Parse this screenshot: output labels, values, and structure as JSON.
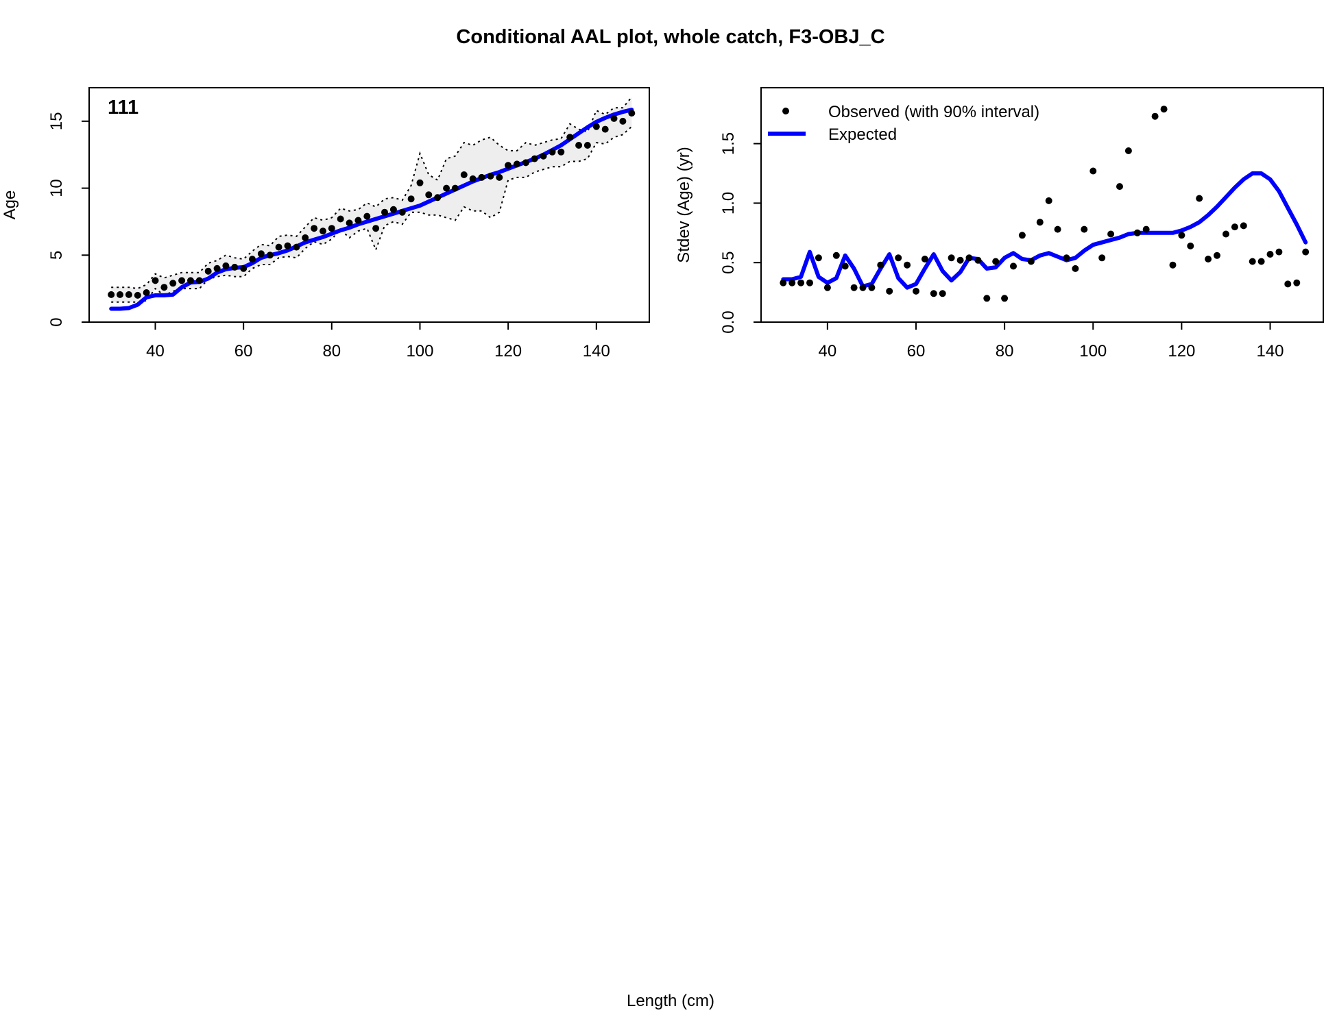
{
  "title": "Conditional AAL plot, whole catch, F3-OBJ_C",
  "xlabel": "Length (cm)",
  "colors": {
    "expected": "#0000ff",
    "observed": "#000000",
    "band": "#eeeeee"
  },
  "chart_data": [
    {
      "type": "scatter",
      "panel_label": "111",
      "ylabel": "Age",
      "xlim": [
        25,
        152
      ],
      "ylim": [
        0,
        17.5
      ],
      "xticks": [
        40,
        60,
        80,
        100,
        120,
        140
      ],
      "yticks": [
        0,
        5,
        10,
        15
      ],
      "grid": false,
      "legend": false,
      "series": [
        {
          "role": "observed",
          "x": [
            30,
            32,
            34,
            36,
            38,
            40,
            42,
            44,
            46,
            48,
            50,
            52,
            54,
            56,
            58,
            60,
            62,
            64,
            66,
            68,
            70,
            72,
            74,
            76,
            78,
            80,
            82,
            84,
            86,
            88,
            90,
            92,
            94,
            96,
            98,
            100,
            102,
            104,
            106,
            108,
            110,
            112,
            114,
            116,
            118,
            120,
            122,
            124,
            126,
            128,
            130,
            132,
            134,
            136,
            138,
            140,
            142,
            144,
            146,
            148
          ],
          "values": [
            2.05,
            2.05,
            2.05,
            2.0,
            2.2,
            3.1,
            2.6,
            2.9,
            3.1,
            3.1,
            3.1,
            3.8,
            4.0,
            4.2,
            4.1,
            4.0,
            4.7,
            5.1,
            5.0,
            5.6,
            5.7,
            5.6,
            6.3,
            7.0,
            6.8,
            7.0,
            7.7,
            7.4,
            7.6,
            7.9,
            7.0,
            8.2,
            8.4,
            8.2,
            9.2,
            10.4,
            9.5,
            9.3,
            10.0,
            10.0,
            11.0,
            10.7,
            10.8,
            10.9,
            10.8,
            11.7,
            11.8,
            11.9,
            12.2,
            12.4,
            12.7,
            12.7,
            13.8,
            13.2,
            13.2,
            14.6,
            14.4,
            15.2,
            15.0,
            15.6
          ],
          "lower": [
            1.5,
            1.5,
            1.5,
            1.5,
            1.6,
            2.5,
            2.0,
            2.3,
            2.5,
            2.5,
            2.5,
            3.2,
            3.4,
            3.5,
            3.4,
            3.4,
            4.0,
            4.3,
            4.3,
            4.8,
            4.9,
            4.8,
            5.5,
            6.0,
            5.8,
            6.2,
            6.9,
            6.3,
            6.8,
            7.0,
            5.4,
            7.2,
            7.5,
            7.3,
            8.2,
            8.2,
            8.0,
            8.0,
            7.8,
            7.6,
            8.6,
            8.3,
            8.3,
            7.8,
            8.2,
            10.6,
            10.8,
            10.8,
            11.2,
            11.4,
            11.6,
            11.6,
            12.0,
            12.0,
            12.2,
            13.4,
            13.3,
            13.8,
            14.0,
            14.6
          ],
          "upper": [
            2.6,
            2.6,
            2.6,
            2.5,
            2.8,
            3.6,
            3.3,
            3.5,
            3.7,
            3.7,
            3.7,
            4.4,
            4.6,
            5.0,
            4.8,
            4.7,
            5.3,
            5.8,
            5.7,
            6.4,
            6.5,
            6.4,
            7.1,
            7.8,
            7.6,
            7.8,
            8.5,
            8.3,
            8.4,
            8.9,
            8.6,
            9.2,
            9.3,
            9.1,
            10.2,
            12.6,
            11.0,
            10.6,
            12.2,
            12.4,
            13.4,
            13.2,
            13.6,
            13.8,
            13.2,
            12.8,
            12.8,
            13.4,
            13.2,
            13.4,
            13.6,
            13.7,
            14.8,
            14.4,
            14.2,
            15.8,
            15.5,
            16.0,
            16.0,
            16.8
          ]
        },
        {
          "role": "expected",
          "x": [
            30,
            32,
            34,
            36,
            38,
            40,
            42,
            44,
            46,
            48,
            50,
            52,
            54,
            56,
            58,
            60,
            62,
            64,
            66,
            68,
            70,
            72,
            74,
            76,
            78,
            80,
            82,
            84,
            86,
            88,
            90,
            92,
            94,
            96,
            98,
            100,
            102,
            104,
            106,
            108,
            110,
            112,
            114,
            116,
            118,
            120,
            122,
            124,
            126,
            128,
            130,
            132,
            134,
            136,
            138,
            140,
            142,
            144,
            146,
            148
          ],
          "values": [
            1.0,
            1.0,
            1.05,
            1.3,
            1.85,
            2.0,
            2.0,
            2.05,
            2.6,
            2.95,
            3.0,
            3.25,
            3.7,
            3.95,
            4.05,
            4.1,
            4.4,
            4.8,
            5.0,
            5.15,
            5.35,
            5.65,
            5.95,
            6.15,
            6.35,
            6.6,
            6.85,
            7.05,
            7.3,
            7.5,
            7.7,
            7.9,
            8.1,
            8.3,
            8.5,
            8.7,
            9.0,
            9.3,
            9.6,
            9.9,
            10.2,
            10.5,
            10.75,
            11.0,
            11.2,
            11.45,
            11.7,
            11.95,
            12.2,
            12.5,
            12.85,
            13.2,
            13.65,
            14.1,
            14.55,
            14.95,
            15.25,
            15.5,
            15.7,
            15.85
          ]
        }
      ]
    },
    {
      "type": "scatter",
      "ylabel": "Stdev (Age) (yr)",
      "xlim": [
        25,
        152
      ],
      "ylim": [
        0,
        1.97
      ],
      "xticks": [
        40,
        60,
        80,
        100,
        120,
        140
      ],
      "yticks": [
        "0.0",
        "0.5",
        "1.0",
        "1.5"
      ],
      "grid": false,
      "legend_position": "top-left",
      "series": [
        {
          "name": "Observed (with 90% interval)",
          "role": "observed",
          "x": [
            30,
            32,
            34,
            36,
            38,
            40,
            42,
            44,
            46,
            48,
            50,
            52,
            54,
            56,
            58,
            60,
            62,
            64,
            66,
            68,
            70,
            72,
            74,
            76,
            78,
            80,
            82,
            84,
            86,
            88,
            90,
            92,
            94,
            96,
            98,
            100,
            102,
            104,
            106,
            108,
            110,
            112,
            114,
            116,
            118,
            120,
            122,
            124,
            126,
            128,
            130,
            132,
            134,
            136,
            138,
            140,
            142,
            144,
            146,
            148
          ],
          "values": [
            0.33,
            0.33,
            0.33,
            0.33,
            0.54,
            0.29,
            0.56,
            0.47,
            0.29,
            0.29,
            0.29,
            0.48,
            0.26,
            0.54,
            0.48,
            0.26,
            0.53,
            0.24,
            0.24,
            0.54,
            0.52,
            0.54,
            0.52,
            0.2,
            0.51,
            0.2,
            0.47,
            0.73,
            0.51,
            0.84,
            1.02,
            0.78,
            0.54,
            0.45,
            0.78,
            1.27,
            0.54,
            0.74,
            1.14,
            1.44,
            0.75,
            0.78,
            1.73,
            1.79,
            0.48,
            0.73,
            0.64,
            1.04,
            0.53,
            0.56,
            0.74,
            0.8,
            0.81,
            0.51,
            0.51,
            0.57,
            0.59,
            0.32,
            0.33,
            0.59
          ]
        },
        {
          "name": "Expected",
          "role": "expected",
          "x": [
            30,
            32,
            34,
            36,
            38,
            40,
            42,
            44,
            46,
            48,
            50,
            52,
            54,
            56,
            58,
            60,
            62,
            64,
            66,
            68,
            70,
            72,
            74,
            76,
            78,
            80,
            82,
            84,
            86,
            88,
            90,
            92,
            94,
            96,
            98,
            100,
            102,
            104,
            106,
            108,
            110,
            112,
            114,
            116,
            118,
            120,
            122,
            124,
            126,
            128,
            130,
            132,
            134,
            136,
            138,
            140,
            142,
            144,
            146,
            148
          ],
          "values": [
            0.36,
            0.36,
            0.38,
            0.59,
            0.38,
            0.33,
            0.37,
            0.56,
            0.45,
            0.3,
            0.32,
            0.45,
            0.57,
            0.37,
            0.29,
            0.32,
            0.45,
            0.57,
            0.43,
            0.35,
            0.42,
            0.54,
            0.53,
            0.45,
            0.46,
            0.54,
            0.58,
            0.53,
            0.52,
            0.56,
            0.58,
            0.55,
            0.52,
            0.54,
            0.6,
            0.65,
            0.67,
            0.69,
            0.71,
            0.74,
            0.75,
            0.75,
            0.75,
            0.75,
            0.75,
            0.77,
            0.8,
            0.84,
            0.9,
            0.97,
            1.05,
            1.13,
            1.2,
            1.25,
            1.25,
            1.2,
            1.1,
            0.96,
            0.82,
            0.67
          ]
        }
      ]
    }
  ]
}
